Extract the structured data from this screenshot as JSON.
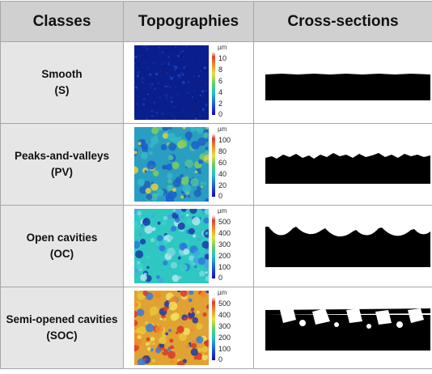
{
  "headers": {
    "classes": "Classes",
    "topographies": "Topographies",
    "cross_sections": "Cross-sections"
  },
  "rows": [
    {
      "name": "Smooth",
      "abbr": "(S)",
      "unit": "µm",
      "ticks": [
        "10",
        "8",
        "6",
        "4",
        "2",
        "0"
      ],
      "palette": "blue"
    },
    {
      "name": "Peaks-and-valleys",
      "abbr": "(PV)",
      "unit": "µm",
      "ticks": [
        "100",
        "80",
        "60",
        "40",
        "20",
        "0"
      ],
      "palette": "mixed"
    },
    {
      "name": "Open cavities",
      "abbr": "(OC)",
      "unit": "µm",
      "ticks": [
        "500",
        "400",
        "300",
        "200",
        "100",
        "0"
      ],
      "palette": "cyan"
    },
    {
      "name": "Semi-opened cavities",
      "abbr": "(SOC)",
      "unit": "µm",
      "ticks": [
        "500",
        "400",
        "300",
        "200",
        "100",
        "0"
      ],
      "palette": "warm"
    }
  ]
}
